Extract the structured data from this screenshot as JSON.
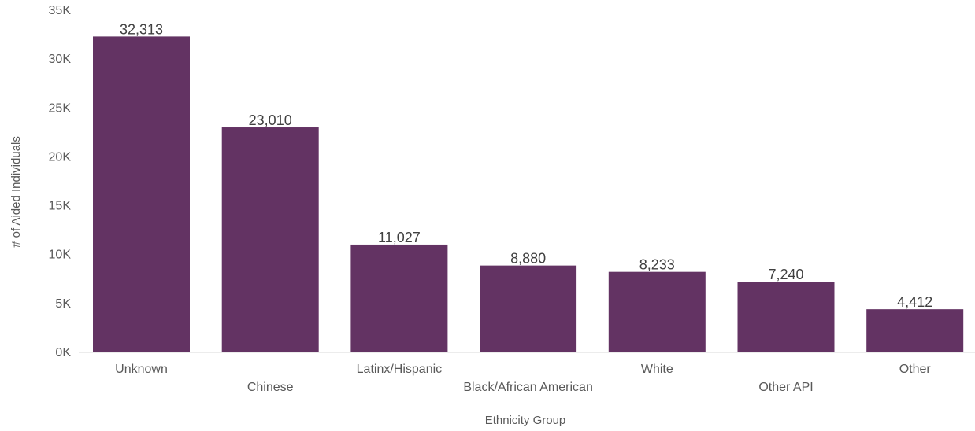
{
  "chart_data": {
    "type": "bar",
    "title": "",
    "xlabel": "Ethnicity Group",
    "ylabel": "# of Aided Individuals",
    "categories": [
      "Unknown",
      "Chinese",
      "Latinx/Hispanic",
      "Black/African American",
      "White",
      "Other API",
      "Other"
    ],
    "values": [
      32313,
      23010,
      11027,
      8880,
      8233,
      7240,
      4412
    ],
    "value_labels": [
      "32,313",
      "23,010",
      "11,027",
      "8,880",
      "8,233",
      "7,240",
      "4,412"
    ],
    "yticks": [
      0,
      5000,
      10000,
      15000,
      20000,
      25000,
      30000,
      35000
    ],
    "ytick_labels": [
      "0K",
      "5K",
      "10K",
      "15K",
      "20K",
      "25K",
      "30K",
      "35K"
    ],
    "ylim": [
      0,
      35000
    ],
    "grid": false,
    "legend": "none",
    "bar_color": "#633363"
  }
}
